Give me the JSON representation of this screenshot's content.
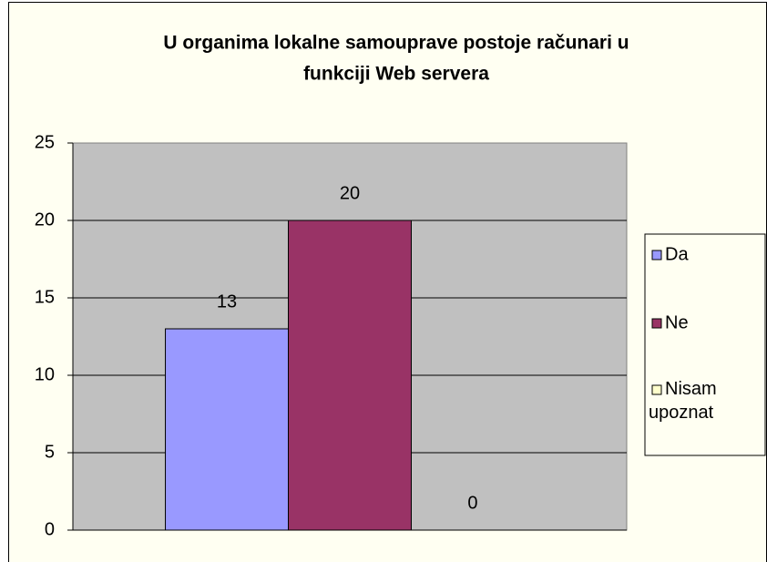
{
  "chart_data": {
    "type": "bar",
    "title": [
      "U organima lokalne samouprave postoje računari u",
      "funkciji Web servera"
    ],
    "categories": [
      null
    ],
    "series": [
      {
        "name": "Da",
        "color": "#9999ff",
        "values": [
          13
        ]
      },
      {
        "name": "Ne",
        "color": "#993366",
        "values": [
          20
        ]
      },
      {
        "name": "Nisam upoznat",
        "color": "#ffffcc",
        "values": [
          0
        ]
      }
    ],
    "ylim": [
      0,
      25
    ],
    "yticks": [
      0,
      5,
      10,
      15,
      20,
      25
    ],
    "grid": true,
    "legend": "right"
  }
}
